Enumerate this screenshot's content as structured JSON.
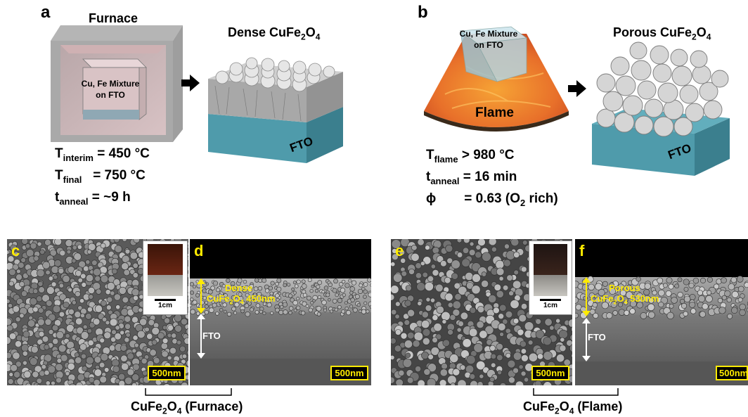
{
  "panels": {
    "a": {
      "label": "a",
      "furnace_title": "Furnace",
      "mixture_line1": "Cu, Fe Mixture",
      "mixture_line2": "on FTO",
      "product_title_pre": "Dense CuFe",
      "product_sub1": "2",
      "product_mid": "O",
      "product_sub2": "4",
      "fto_label": "FTO",
      "conditions": [
        {
          "symbol": "T",
          "sub": "interim",
          "value": "= 450 °C"
        },
        {
          "symbol": "T",
          "sub": "final",
          "value": "= 750 °C"
        },
        {
          "symbol": "t",
          "sub": "anneal",
          "value": "= ~9 h"
        }
      ]
    },
    "b": {
      "label": "b",
      "mixture_line1": "Cu, Fe Mixture",
      "mixture_line2": "on FTO",
      "flame_label": "Flame",
      "product_title_pre": "Porous CuFe",
      "product_sub1": "2",
      "product_mid": "O",
      "product_sub2": "4",
      "fto_label": "FTO",
      "conditions": [
        {
          "symbol": "T",
          "sub": "flame",
          "value": "> 980 °C"
        },
        {
          "symbol": "t",
          "sub": "anneal",
          "value": "= 16 min"
        },
        {
          "symbol": "ϕ",
          "sub": "",
          "value": "= 0.63 (O",
          "value_sub": "2",
          "value_post": " rich)"
        }
      ]
    },
    "c": {
      "label": "c",
      "scale": "500nm",
      "inset_scale": "1cm"
    },
    "d": {
      "label": "d",
      "scale": "500nm",
      "layer_line1": "Dense",
      "layer_line2_pre": "CuFe",
      "layer_sub1": "2",
      "layer_mid": "O",
      "layer_sub2": "4",
      "layer_post": " 450nm",
      "fto_label": "FTO"
    },
    "e": {
      "label": "e",
      "scale": "500nm",
      "inset_scale": "1cm"
    },
    "f": {
      "label": "f",
      "scale": "500nm",
      "layer_line1": "Porous",
      "layer_line2_pre": "CuFe",
      "layer_sub1": "2",
      "layer_mid": "O",
      "layer_sub2": "4",
      "layer_post": " 530nm",
      "fto_label": "FTO"
    }
  },
  "captions": {
    "furnace": {
      "pre": "CuFe",
      "sub1": "2",
      "mid": "O",
      "sub2": "4",
      "post": " (Furnace)"
    },
    "flame": {
      "pre": "CuFe",
      "sub1": "2",
      "mid": "O",
      "sub2": "4",
      "post": " (Flame)"
    }
  }
}
